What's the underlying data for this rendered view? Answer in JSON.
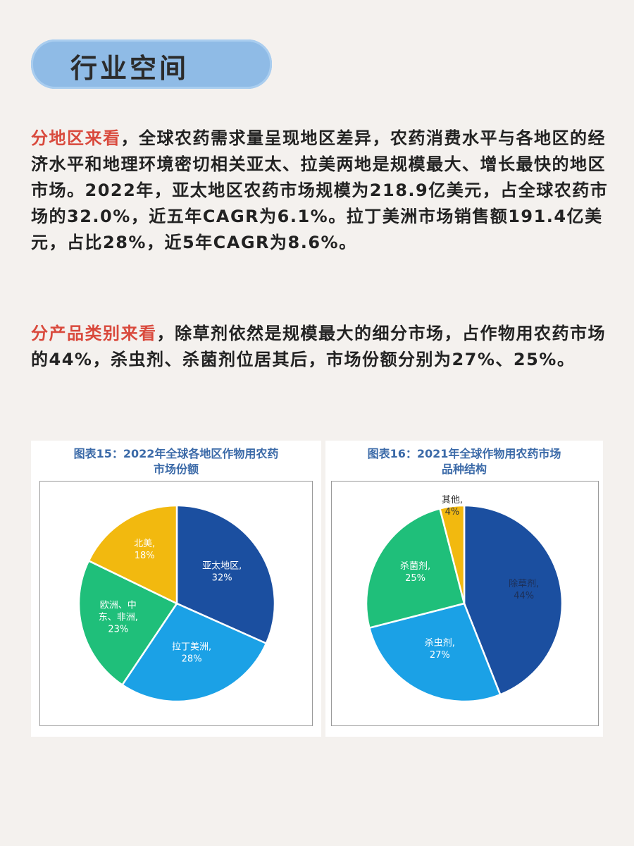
{
  "header": {
    "title": "行业空间"
  },
  "para1": {
    "highlight": "分地区来看",
    "text": "，全球农药需求量呈现地区差异，农药消费水平与各地区的经济水平和地理环境密切相关亚太、拉美两地是规模最大、增长最快的地区市场。2022年，亚太地区农药市场规模为218.9亿美元，占全球农药市场的32.0%，近五年CAGR为6.1%。拉丁美洲市场销售额191.4亿美元，占比28%，近5年CAGR为8.6%。"
  },
  "para2": {
    "highlight": "分产品类别来看",
    "text": "，除草剂依然是规模最大的细分市场，占作物用农药市场的44%，杀虫剂、杀菌剂位居其后，市场份额分别为27%、25%。"
  },
  "chart_data": [
    {
      "type": "pie",
      "title_line1": "图表15：2022年全球各地区作物用农药",
      "title_line2": "市场份额",
      "slices": [
        {
          "label": "亚太地区,",
          "label2": "",
          "value": 32,
          "value_text": "32%",
          "color": "#1b4fa0",
          "text_class": ""
        },
        {
          "label": "拉丁美洲,",
          "label2": "",
          "value": 28,
          "value_text": "28%",
          "color": "#1ba1e6",
          "text_class": ""
        },
        {
          "label": "欧洲、中",
          "label2": "东、非洲,",
          "value": 23,
          "value_text": "23%",
          "color": "#1fbf7a",
          "text_class": ""
        },
        {
          "label": "北美,",
          "label2": "",
          "value": 18,
          "value_text": "18%",
          "color": "#f2b90f",
          "text_class": ""
        }
      ]
    },
    {
      "type": "pie",
      "title_line1": "图表16：2021年全球作物用农药市场",
      "title_line2": "品种结构",
      "slices": [
        {
          "label": "除草剂,",
          "label2": "",
          "value": 44,
          "value_text": "44%",
          "color": "#1b4fa0",
          "text_class": "navy"
        },
        {
          "label": "杀虫剂,",
          "label2": "",
          "value": 27,
          "value_text": "27%",
          "color": "#1ba1e6",
          "text_class": ""
        },
        {
          "label": "杀菌剂,",
          "label2": "",
          "value": 25,
          "value_text": "25%",
          "color": "#1fbf7a",
          "text_class": ""
        },
        {
          "label": "其他,",
          "label2": "",
          "value": 4,
          "value_text": "4%",
          "color": "#f2b90f",
          "text_class": "dark"
        }
      ]
    }
  ]
}
